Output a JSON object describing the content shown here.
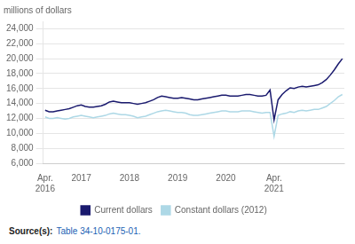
{
  "chart_data": {
    "type": "line",
    "y_label": "millions of dollars",
    "annotations": [
      "Source(s):",
      "Table 34-10-0175-01."
    ],
    "categories": [
      "Apr.\n2016",
      null,
      null,
      null,
      null,
      null,
      null,
      null,
      null,
      "2017",
      null,
      null,
      null,
      null,
      null,
      null,
      null,
      null,
      null,
      null,
      null,
      "2018",
      null,
      null,
      null,
      null,
      null,
      null,
      null,
      null,
      null,
      null,
      null,
      "2019",
      null,
      null,
      null,
      null,
      null,
      null,
      null,
      null,
      null,
      null,
      null,
      "2020",
      null,
      null,
      null,
      null,
      null,
      null,
      null,
      null,
      null,
      null,
      null,
      "Apr.\n2021",
      null,
      null,
      null,
      null,
      null,
      null,
      null,
      null,
      null,
      null,
      null,
      null,
      null,
      null,
      null,
      null,
      null
    ],
    "series": [
      {
        "name": "Current dollars",
        "color": "#1a1a6e",
        "values": [
          13100,
          12900,
          12900,
          13000,
          13100,
          13200,
          13300,
          13500,
          13700,
          13800,
          13600,
          13500,
          13500,
          13600,
          13700,
          13900,
          14200,
          14300,
          14200,
          14100,
          14100,
          14100,
          14000,
          13900,
          14000,
          14100,
          14300,
          14500,
          14800,
          15000,
          14900,
          14800,
          14700,
          14700,
          14800,
          14700,
          14600,
          14500,
          14500,
          14600,
          14700,
          14800,
          14900,
          15000,
          15100,
          15100,
          15000,
          15000,
          15000,
          15100,
          15200,
          15200,
          15100,
          15000,
          15000,
          15100,
          15800,
          11800,
          14500,
          15200,
          15700,
          16100,
          16000,
          16200,
          16300,
          16200,
          16300,
          16400,
          16500,
          16800,
          17200,
          17800,
          18500,
          19300,
          20000
        ]
      },
      {
        "name": "Constant dollars (2012)",
        "color": "#add8e6",
        "values": [
          12200,
          12000,
          12000,
          12100,
          12000,
          11900,
          12000,
          12200,
          12300,
          12400,
          12300,
          12200,
          12100,
          12200,
          12300,
          12400,
          12600,
          12700,
          12600,
          12500,
          12500,
          12400,
          12300,
          12100,
          12200,
          12300,
          12500,
          12700,
          12900,
          13000,
          13100,
          13000,
          12900,
          12800,
          12800,
          12700,
          12500,
          12400,
          12400,
          12500,
          12600,
          12700,
          12800,
          12900,
          13000,
          13000,
          12900,
          12900,
          12900,
          13000,
          13000,
          13000,
          12900,
          12800,
          12700,
          12800,
          12800,
          9600,
          12400,
          12600,
          12700,
          12900,
          12800,
          13000,
          13100,
          13000,
          13100,
          13200,
          13200,
          13400,
          13600,
          14000,
          14400,
          14900,
          15200
        ]
      }
    ],
    "ylim": [
      6000,
      25000
    ],
    "yticks": [
      {
        "value": 6000,
        "label": "6,000"
      },
      {
        "value": 8000,
        "label": "8,000"
      },
      {
        "value": 10000,
        "label": "10,000"
      },
      {
        "value": 12000,
        "label": "12,000"
      },
      {
        "value": 14000,
        "label": "14,000"
      },
      {
        "value": 16000,
        "label": "16,000"
      },
      {
        "value": 18000,
        "label": "18,000"
      },
      {
        "value": 20000,
        "label": "20,000"
      },
      {
        "value": 22000,
        "label": "22,000"
      },
      {
        "value": 24000,
        "label": "24,000"
      }
    ],
    "grid": true,
    "legend": "bottom"
  }
}
